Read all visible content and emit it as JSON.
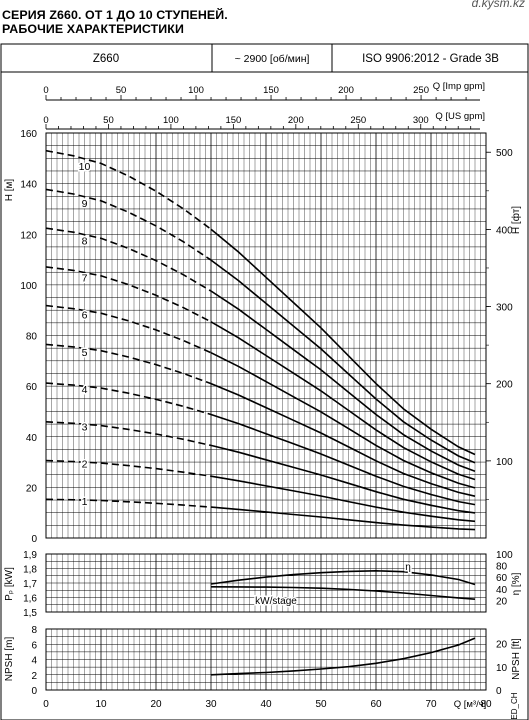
{
  "brand": "d.kysm.kz",
  "title_line1": "СЕРИЯ Z660. ОТ 1 ДО 10 СТУПЕНЕЙ.",
  "title_line2": "РАБОЧИЕ ХАРАКТЕРИСТИКИ",
  "info_bar": {
    "model": "Z660",
    "speed": "~ 2900 [об/мин]",
    "standard": "ISO 9906:2012 - Grade 3B"
  },
  "side_code": "ED_CH",
  "chart_data": [
    {
      "type": "line",
      "id": "head",
      "xlabel": "Q [м³/ч]",
      "ylabel": "H [м]",
      "ylabel_right": "H [фт]",
      "xlim": [
        0,
        80
      ],
      "ylim": [
        0,
        160
      ],
      "x_ticks": [
        0,
        10,
        20,
        30,
        40,
        50,
        60,
        70,
        80
      ],
      "y_ticks": [
        0,
        20,
        40,
        60,
        80,
        100,
        120,
        140,
        160
      ],
      "y_right_ticks": [
        100,
        200,
        300,
        400,
        500
      ],
      "top_axis_imp": {
        "label": "Q [Imp gpm]",
        "ticks": [
          0,
          50,
          100,
          150,
          200,
          250
        ]
      },
      "top_axis_us": {
        "label": "Q [US gpm]",
        "ticks": [
          0,
          50,
          100,
          150,
          200,
          250,
          300
        ]
      },
      "grid": true,
      "stage_labels": [
        "1",
        "2",
        "3",
        "4",
        "5",
        "6",
        "7",
        "8",
        "9",
        "10"
      ],
      "base_curve": {
        "x": [
          0,
          5,
          10,
          15,
          20,
          25,
          30,
          35,
          40,
          45,
          50,
          55,
          60,
          65,
          70,
          75,
          78
        ],
        "h": [
          15.3,
          15.1,
          14.8,
          14.3,
          13.7,
          13.0,
          12.2,
          11.3,
          10.3,
          9.3,
          8.3,
          7.2,
          6.1,
          5.1,
          4.3,
          3.6,
          3.3
        ]
      },
      "dashed_until_x": 30
    },
    {
      "type": "line",
      "id": "power_eff",
      "ylabel": "Pₚ [kW]",
      "ylabel_right": "η [%]",
      "xlim": [
        0,
        80
      ],
      "ylim": [
        1.5,
        1.9
      ],
      "y_ticks": [
        1.5,
        1.6,
        1.7,
        1.8,
        1.9
      ],
      "y_right_ticks": [
        20,
        40,
        60,
        80,
        100
      ],
      "grid": true,
      "series": [
        {
          "name": "η",
          "x": [
            30,
            35,
            40,
            45,
            50,
            55,
            60,
            65,
            70,
            75,
            78
          ],
          "y": [
            1.693,
            1.719,
            1.741,
            1.758,
            1.771,
            1.78,
            1.784,
            1.778,
            1.756,
            1.724,
            1.69
          ]
        },
        {
          "name": "kW/stage",
          "x": [
            30,
            35,
            40,
            45,
            50,
            55,
            60,
            65,
            70,
            75,
            78
          ],
          "y": [
            1.674,
            1.673,
            1.672,
            1.669,
            1.664,
            1.656,
            1.645,
            1.631,
            1.614,
            1.597,
            1.588
          ]
        }
      ]
    },
    {
      "type": "line",
      "id": "npsh",
      "ylabel": "NPSH [m]",
      "ylabel_right": "NPSH [ft]",
      "xlim": [
        0,
        80
      ],
      "ylim": [
        0,
        8
      ],
      "y_ticks": [
        0,
        2,
        4,
        6,
        8
      ],
      "y_right_ticks": [
        0,
        10,
        20
      ],
      "grid": true,
      "series": [
        {
          "name": "NPSH",
          "x": [
            30,
            35,
            40,
            45,
            50,
            55,
            60,
            65,
            70,
            75,
            78
          ],
          "y": [
            2.0,
            2.15,
            2.3,
            2.5,
            2.75,
            3.05,
            3.5,
            4.1,
            4.9,
            5.9,
            6.8
          ]
        }
      ]
    }
  ]
}
